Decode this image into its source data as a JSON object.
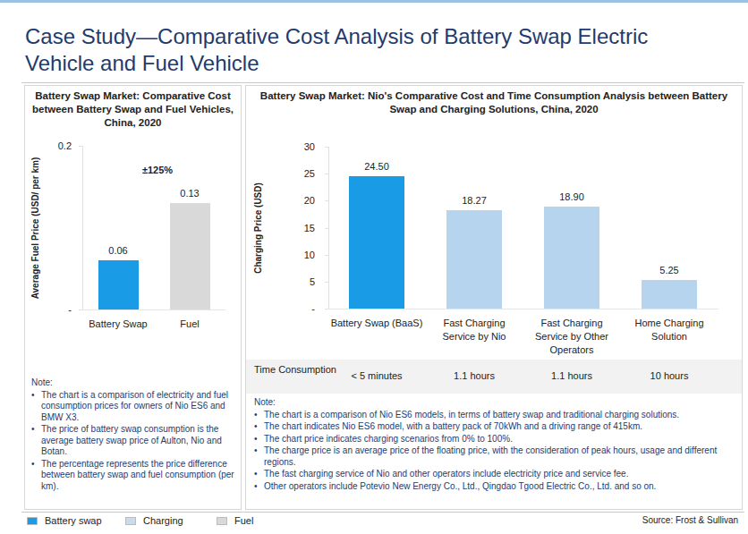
{
  "title": "Case Study—Comparative Cost Analysis of Battery Swap Electric Vehicle and Fuel Vehicle",
  "chart_data": [
    {
      "type": "bar",
      "title": "Battery Swap Market: Comparative Cost between Battery Swap and Fuel Vehicles, China, 2020",
      "y_label": "Average Fuel Price (USD/ per km)",
      "categories": [
        "Battery Swap",
        "Fuel"
      ],
      "values": [
        0.06,
        0.13
      ],
      "colors": [
        "#1a9be6",
        "#d9d9d9"
      ],
      "ylim": [
        0,
        0.2
      ],
      "yticks": [
        {
          "value": 0,
          "label": "-"
        },
        0.2
      ],
      "grid": false,
      "data_labels": true,
      "annotations": [
        "±125%"
      ]
    },
    {
      "type": "bar",
      "title": "Battery Swap Market: Nio's Comparative Cost and Time Consumption Analysis between Battery Swap and Charging Solutions, China, 2020",
      "y_label": "Charging Price (USD)",
      "categories": [
        "Battery Swap (BaaS)",
        "Fast Charging Service by Nio",
        "Fast Charging Service by Other Operators",
        "Home Charging Solution"
      ],
      "values": [
        24.5,
        18.27,
        18.9,
        5.25
      ],
      "value_labels": [
        "24.50",
        "18.27",
        "18.90",
        "5.25"
      ],
      "colors": [
        "#1a9be6",
        "#b7d4ee",
        "#b7d4ee",
        "#b7d4ee"
      ],
      "ylim": [
        0,
        30
      ],
      "yticks": [
        {
          "value": 0,
          "label": "-"
        },
        5,
        10,
        15,
        20,
        25,
        30
      ],
      "grid": false,
      "data_labels": true
    }
  ],
  "time_consumption": {
    "label": "Time Consumption",
    "values": [
      "< 5 minutes",
      "1.1 hours",
      "1.1 hours",
      "10 hours"
    ]
  },
  "notes": [
    {
      "label": "Note:",
      "items": [
        "The chart is a comparison of electricity and fuel consumption prices for owners of Nio ES6 and BMW X3.",
        "The price of battery swap consumption is the average battery swap price of Aulton, Nio and Botan.",
        "The percentage represents the price difference between battery swap and fuel consumption (per km)."
      ]
    },
    {
      "label": "Note:",
      "items": [
        "The chart is a comparison of Nio ES6 models, in terms of battery swap and traditional charging solutions.",
        "The chart indicates Nio ES6 model, with a battery pack of 70kWh and a driving range of 415km.",
        "The chart price indicates charging scenarios from 0% to 100%.",
        "The charge price is an average price of the floating price, with the consideration of peak hours, usage and different regions.",
        "The fast charging service of Nio and other operators include electricity price and service fee.",
        "Other operators include Potevio New Energy Co., Ltd., Qingdao Tgood Electric Co., Ltd. and so on."
      ]
    }
  ],
  "legend_items": [
    {
      "name": "Battery swap",
      "color": "#1a9be6"
    },
    {
      "name": "Charging",
      "color": "#c9dcee"
    },
    {
      "name": "Fuel",
      "color": "#d9d9d9"
    }
  ],
  "source": "Source: Frost & Sullivan"
}
